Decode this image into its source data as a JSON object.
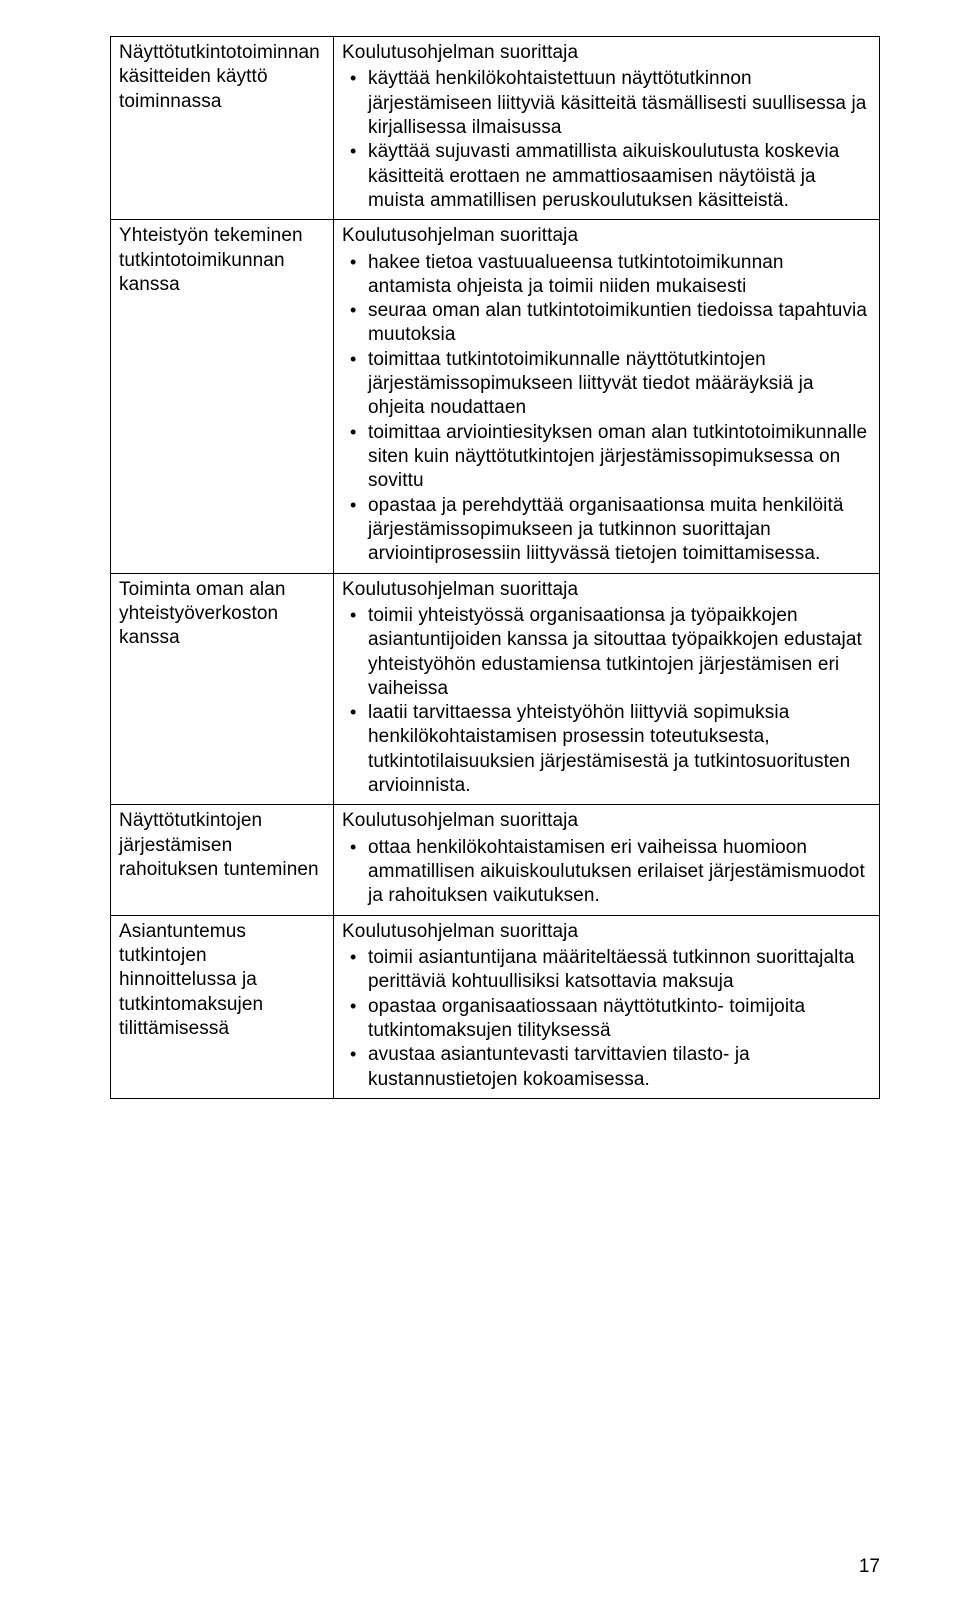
{
  "page_number": "17",
  "rows": [
    {
      "left": "Näyttötutkintotoiminnan käsitteiden käyttö toiminnassa",
      "intro": "Koulutusohjelman suorittaja",
      "bullets": [
        "käyttää henkilökohtaistettuun näyttötutkinnon järjestämiseen liittyviä käsitteitä täsmällisesti suullisessa ja kirjallisessa ilmaisussa",
        "käyttää sujuvasti ammatillista aikuiskoulutusta koskevia käsitteitä erottaen ne  ammattiosaamisen näytöistä ja muista ammatillisen peruskoulutuksen käsitteistä."
      ]
    },
    {
      "left": "Yhteistyön tekeminen tutkintotoimikunnan kanssa",
      "intro": "Koulutusohjelman suorittaja",
      "bullets": [
        "hakee tietoa vastuualueensa tutkintotoimikunnan antamista ohjeista ja toimii niiden mukaisesti",
        "seuraa oman alan tutkintotoimikuntien tiedoissa tapahtuvia muutoksia",
        "toimittaa tutkintotoimikunnalle näyttötutkintojen järjestämissopimukseen liittyvät tiedot määräyksiä ja ohjeita noudattaen",
        "toimittaa arviointiesityksen oman alan tutkintotoimikunnalle siten kuin näyttötutkintojen järjestämissopimuksessa on sovittu",
        "opastaa ja perehdyttää organisaationsa muita henkilöitä järjestämissopimukseen ja tutkinnon suorittajan arviointiprosessiin liittyvässä tietojen toimittamisessa."
      ]
    },
    {
      "left": "Toiminta oman alan yhteistyöverkoston kanssa",
      "intro": "Koulutusohjelman suorittaja",
      "bullets": [
        "toimii yhteistyössä organisaationsa ja työpaikkojen asiantuntijoiden kanssa ja sitouttaa työpaikkojen edustajat yhteistyöhön edustamiensa tutkintojen järjestämisen eri vaiheissa",
        "laatii tarvittaessa yhteistyöhön liittyviä sopimuksia henkilökohtaistamisen prosessin toteutuksesta, tutkintotilaisuuksien järjestämisestä ja tutkintosuoritusten arvioinnista."
      ]
    },
    {
      "left": "Näyttötutkintojen järjestämisen rahoituksen tunteminen",
      "intro": "Koulutusohjelman suorittaja",
      "bullets": [
        "ottaa henkilökohtaistamisen eri vaiheissa huomioon ammatillisen aikuiskoulutuksen erilaiset järjestämismuodot ja rahoituksen vaikutuksen."
      ]
    },
    {
      "left": "Asiantuntemus tutkintojen hinnoittelussa ja tutkintomaksujen tilittämisessä",
      "intro": "Koulutusohjelman suorittaja",
      "bullets": [
        "toimii asiantuntijana määriteltäessä tutkinnon suorittajalta perittäviä kohtuullisiksi katsottavia maksuja",
        "opastaa organisaatiossaan näyttötutkinto- toimijoita tutkintomaksujen tilityksessä",
        "avustaa asiantuntevasti tarvittavien tilasto- ja kustannustietojen kokoamisessa."
      ]
    }
  ]
}
